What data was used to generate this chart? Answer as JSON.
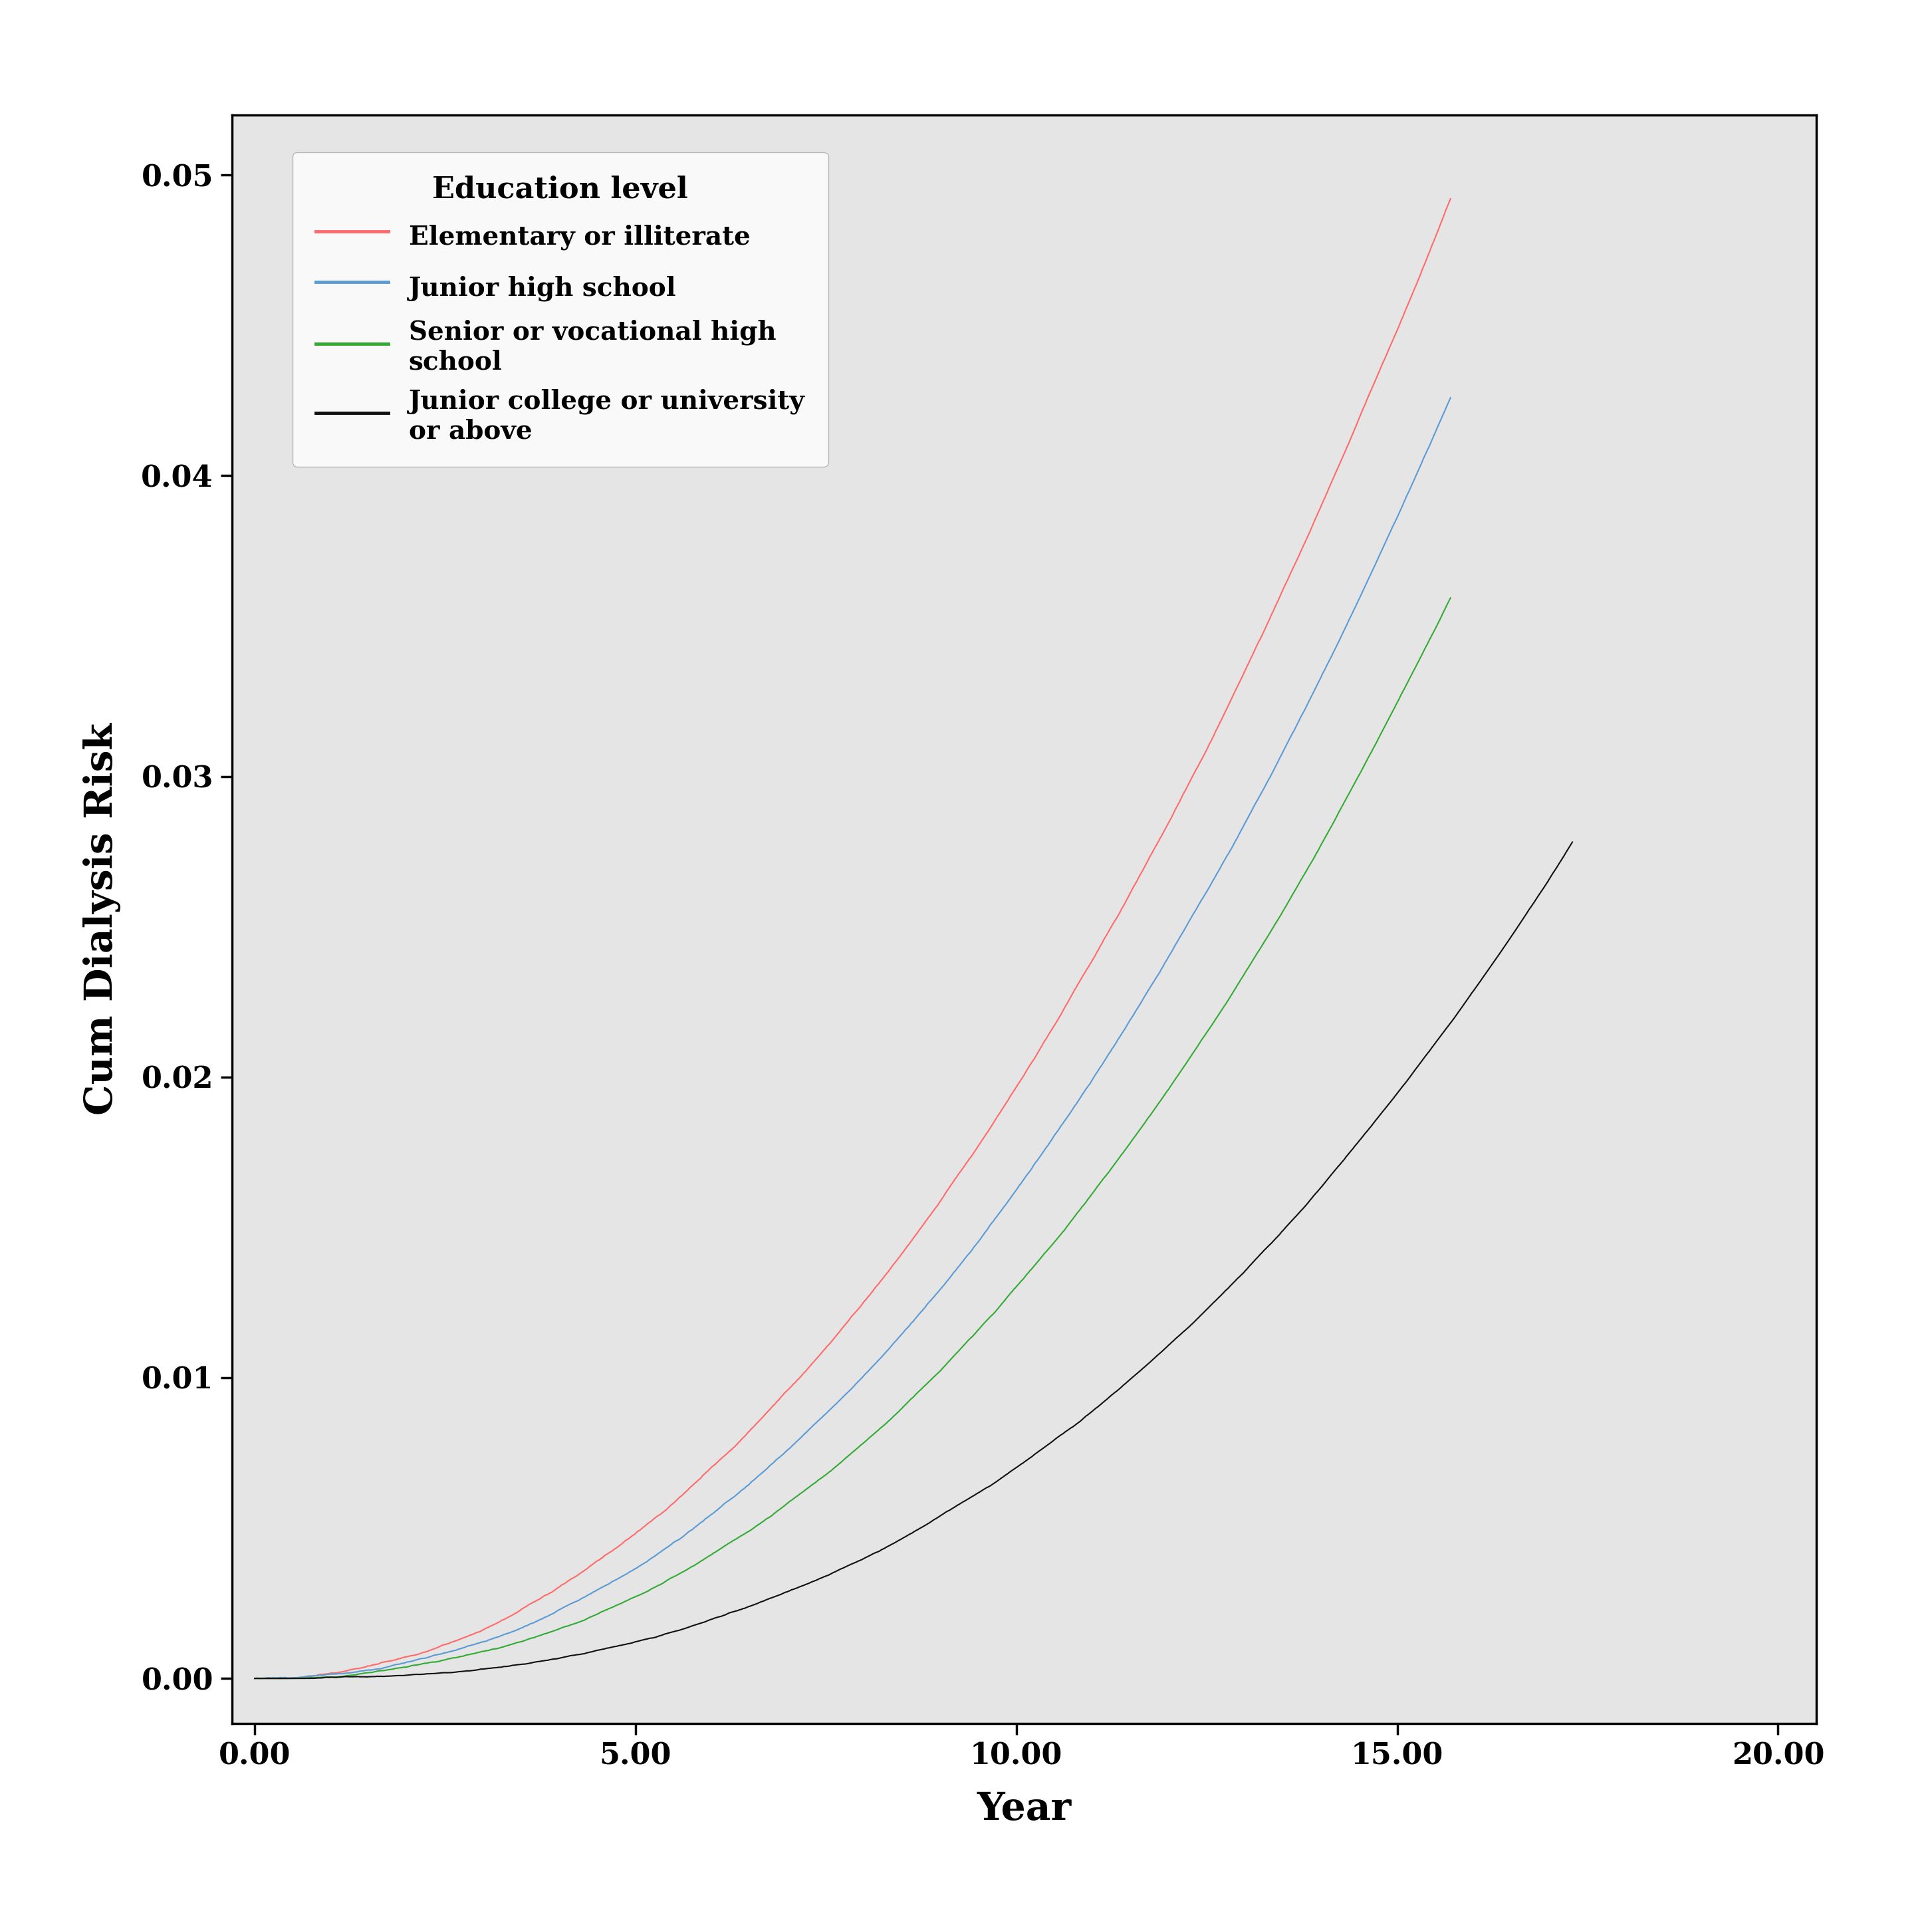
{
  "title": "",
  "xlabel": "Year",
  "ylabel": "Cum Dialysis Risk",
  "xlim": [
    -0.3,
    20.5
  ],
  "ylim": [
    -0.0015,
    0.052
  ],
  "xticks": [
    0.0,
    5.0,
    10.0,
    15.0,
    20.0
  ],
  "yticks": [
    0.0,
    0.01,
    0.02,
    0.03,
    0.04,
    0.05
  ],
  "xtick_labels": [
    "0.00",
    "5.00",
    "10.00",
    "15.00",
    "20.00"
  ],
  "ytick_labels": [
    "0.00",
    "0.01",
    "0.02",
    "0.03",
    "0.04",
    "0.05"
  ],
  "plot_bg_color": "#e5e5e5",
  "outer_bg_color": "#ffffff",
  "legend_title": "Education level",
  "legend_entries": [
    "Elementary or illiterate",
    "Junior high school",
    "Senior or vocational high\nschool",
    "Junior college or university\nor above"
  ],
  "line_colors": [
    "#ff6b6b",
    "#5b9bd5",
    "#33aa33",
    "#111111"
  ],
  "noise_seeds": [
    42,
    43,
    44,
    45
  ],
  "curves": [
    {
      "t_max": 15.7,
      "y_max": 0.049,
      "power": 2.05,
      "n_points": 4000,
      "noise_scale": 0.00018
    },
    {
      "t_max": 15.7,
      "y_max": 0.0425,
      "power": 2.15,
      "n_points": 4000,
      "noise_scale": 0.00016
    },
    {
      "t_max": 15.7,
      "y_max": 0.036,
      "power": 2.25,
      "n_points": 4000,
      "noise_scale": 0.00013
    },
    {
      "t_max": 17.3,
      "y_max": 0.0278,
      "power": 2.5,
      "n_points": 4500,
      "noise_scale": 0.0001
    }
  ]
}
